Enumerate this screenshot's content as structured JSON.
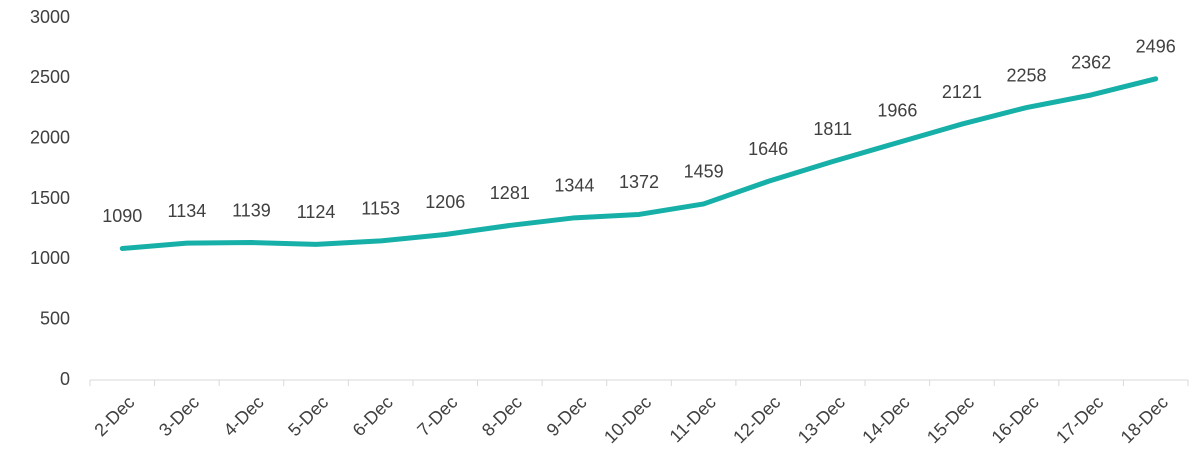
{
  "chart_data": {
    "type": "line",
    "categories": [
      "2-Dec",
      "3-Dec",
      "4-Dec",
      "5-Dec",
      "6-Dec",
      "7-Dec",
      "8-Dec",
      "9-Dec",
      "10-Dec",
      "11-Dec",
      "12-Dec",
      "13-Dec",
      "14-Dec",
      "15-Dec",
      "16-Dec",
      "17-Dec",
      "18-Dec"
    ],
    "values": [
      1090,
      1134,
      1139,
      1124,
      1153,
      1206,
      1281,
      1344,
      1372,
      1459,
      1646,
      1811,
      1966,
      2121,
      2258,
      2362,
      2496
    ],
    "color": "#17b0a8",
    "ylim": [
      0,
      3000
    ],
    "yticks": [
      0,
      500,
      1000,
      1500,
      2000,
      2500,
      3000
    ],
    "grid": false
  }
}
